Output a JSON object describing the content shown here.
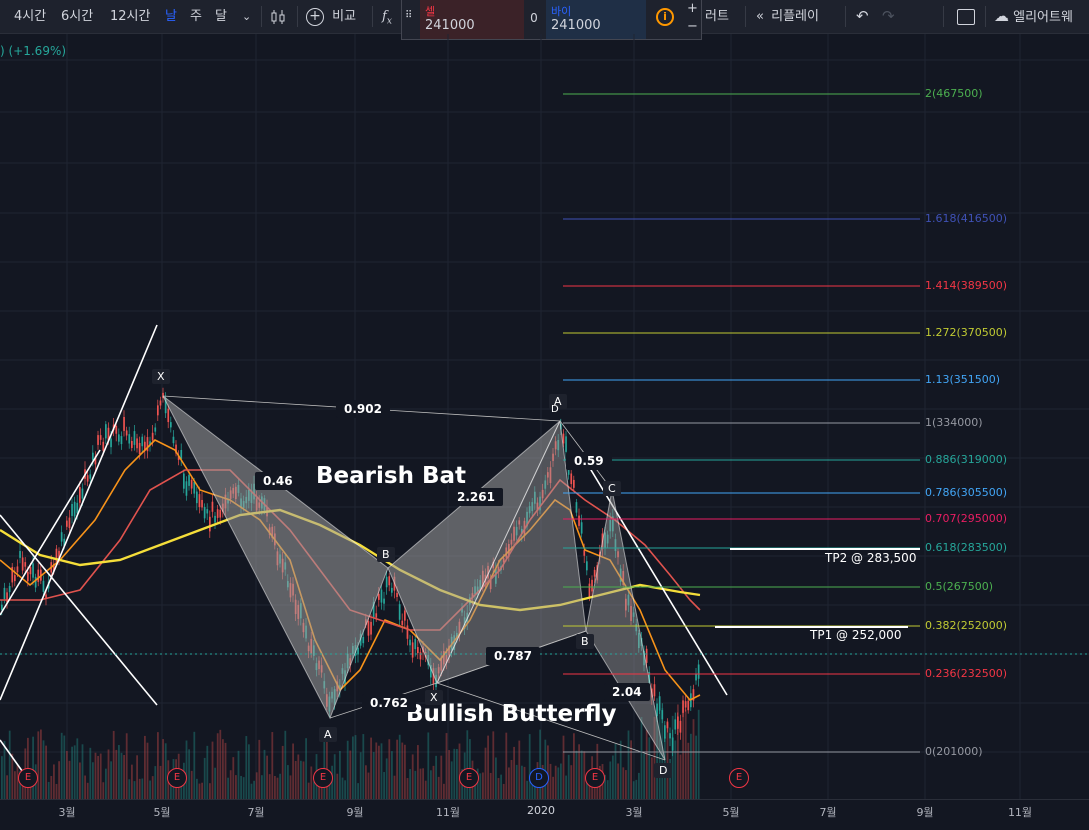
{
  "toolbar": {
    "intervals": [
      "4시간",
      "6시간",
      "12시간",
      "날",
      "주",
      "달"
    ],
    "active_interval": "날",
    "compare_label": "비교",
    "alert_label_partial": "러트",
    "replay_label": "리플레이",
    "alerts_label": "엘리어트웨"
  },
  "trade": {
    "sell_label": "셀",
    "sell_price": "241000",
    "spread": "0",
    "buy_label": "바이",
    "buy_price": "241000"
  },
  "change_text": ") (+1.69%)",
  "fib_levels": [
    {
      "label": "2(467500)",
      "color": "#4caf50"
    },
    {
      "label": "1.618(416500)",
      "color": "#3f51b5"
    },
    {
      "label": "1.414(389500)",
      "color": "#f23645"
    },
    {
      "label": "1.272(370500)",
      "color": "#c0ca33"
    },
    {
      "label": "1.13(351500)",
      "color": "#42a5f5"
    },
    {
      "label": "1(334000)",
      "color": "#9598a1"
    },
    {
      "label": "0.886(319000)",
      "color": "#26a69a"
    },
    {
      "label": "0.786(305500)",
      "color": "#42a5f5"
    },
    {
      "label": "0.707(295000)",
      "color": "#e91e63"
    },
    {
      "label": "0.618(283500)",
      "color": "#26a69a"
    },
    {
      "label": "0.5(267500)",
      "color": "#4caf50"
    },
    {
      "label": "0.382(252000)",
      "color": "#c0ca33"
    },
    {
      "label": "0.236(232500)",
      "color": "#f23645"
    },
    {
      "label": "0(201000)",
      "color": "#9598a1"
    }
  ],
  "targets": {
    "tp2": "TP2 @ 283,500",
    "tp1": "TP1 @ 252,000"
  },
  "patterns": {
    "bearish": "Bearish Bat",
    "bullish": "Bullish Butterfly"
  },
  "ratios": {
    "r0902": "0.902",
    "r046": "0.46",
    "r2261": "2.261",
    "r0762": "0.762",
    "r0787": "0.787",
    "r059": "0.59",
    "r204": "2.04"
  },
  "points": {
    "x1": "X",
    "a1": "A",
    "b1": "B",
    "x2": "X",
    "a2": "A",
    "d2": "D",
    "b2": "B",
    "c2": "C",
    "d3": "D"
  },
  "x_axis": [
    "3월",
    "5월",
    "7월",
    "9월",
    "11월",
    "2020",
    "3월",
    "5월",
    "7월",
    "9월",
    "11월"
  ],
  "events": [
    "E",
    "E",
    "E",
    "E",
    "D",
    "E",
    "E"
  ]
}
